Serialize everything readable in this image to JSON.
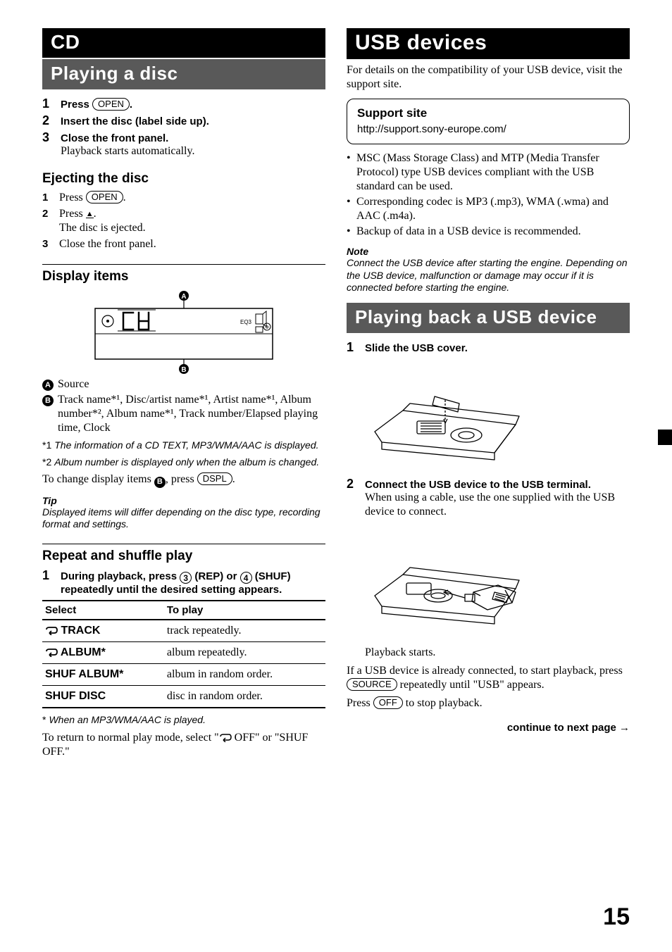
{
  "left": {
    "hdr_cd": "CD",
    "hdr_playing": "Playing a disc",
    "steps_main": [
      {
        "num": "1",
        "bold_pre": "Press ",
        "button": "OPEN",
        "bold_post": "."
      },
      {
        "num": "2",
        "bold": "Insert the disc (label side up)."
      },
      {
        "num": "3",
        "bold": "Close the front panel.",
        "plain": "Playback starts automatically."
      }
    ],
    "eject_title": "Ejecting the disc",
    "eject_steps": [
      {
        "num": "1",
        "pre": "Press ",
        "button": "OPEN",
        "post": "."
      },
      {
        "num": "2",
        "pre": "Press ",
        "eject": true,
        "post": ".",
        "sub": "The disc is ejected."
      },
      {
        "num": "3",
        "text": "Close the front panel."
      }
    ],
    "display_title": "Display items",
    "display_labels": {
      "A": "A",
      "B": "B"
    },
    "defs": [
      {
        "key": "A",
        "text": "Source"
      },
      {
        "key": "B",
        "text": "Track name*¹, Disc/artist name*¹, Artist name*¹, Album number*², Album name*¹, Track number/Elapsed playing time, Clock"
      }
    ],
    "footnotes": [
      {
        "num": "*1",
        "text": "The information of a CD TEXT, MP3/WMA/AAC is displayed."
      },
      {
        "num": "*2",
        "text": "Album number is displayed only when the album is changed."
      }
    ],
    "change_text_pre": "To change display items ",
    "change_text_mid": ", press ",
    "change_button": "DSPL",
    "change_text_post": ".",
    "tip_hdr": "Tip",
    "tip_body": "Displayed items will differ depending on the disc type, recording format and settings.",
    "repeat_title": "Repeat and shuffle play",
    "repeat_step_num": "1",
    "repeat_step_pre": "During playback, press ",
    "repeat_step_btn3": "3",
    "repeat_step_mid1": " (REP) or ",
    "repeat_step_btn4": "4",
    "repeat_step_mid2": " (SHUF) repeatedly until the desired setting appears.",
    "table": {
      "col1": "Select",
      "col2": "To play",
      "rows": [
        {
          "icon": "repeat",
          "label": "TRACK",
          "desc": "track repeatedly."
        },
        {
          "icon": "repeat",
          "label": "ALBUM*",
          "desc": "album repeatedly."
        },
        {
          "icon": "",
          "label": "SHUF ALBUM*",
          "desc": "album in random order."
        },
        {
          "icon": "",
          "label": "SHUF DISC",
          "desc": "disc in random order."
        }
      ]
    },
    "table_footnote_mark": "*",
    "table_footnote": "When an MP3/WMA/AAC is played.",
    "return_text_pre": "To return to normal play mode, select \"",
    "return_text_mid": " OFF\" or \"SHUF OFF.\""
  },
  "right": {
    "hdr_usb": "USB devices",
    "intro": "For details on the compatibility of your USB device, visit the support site.",
    "support_title": "Support site",
    "support_url": "http://support.sony-europe.com/",
    "bullets": [
      "MSC (Mass Storage Class) and MTP (Media Transfer Protocol) type USB devices compliant with the USB standard can be used.",
      "Corresponding codec is MP3 (.mp3), WMA (.wma) and AAC (.m4a).",
      "Backup of data in a USB device is recommended."
    ],
    "note_hdr": "Note",
    "note_body": "Connect the USB device after starting the engine. Depending on the USB device, malfunction or damage may occur if it is connected before starting the engine.",
    "hdr_playback": "Playing back a USB device",
    "usb_steps": [
      {
        "num": "1",
        "bold": "Slide the USB cover."
      },
      {
        "num": "2",
        "bold": "Connect the USB device to the USB terminal.",
        "plain": "When using a cable, use the one supplied with the USB device to connect."
      }
    ],
    "playback_starts": "Playback starts.",
    "already_pre": "If a USB device is already connected, to start playback, press ",
    "already_btn": "SOURCE",
    "already_post": " repeatedly until \"USB\" appears.",
    "stop_pre": "Press ",
    "stop_btn": "OFF",
    "stop_post": " to stop playback.",
    "continue": "continue to next page →"
  },
  "page_num": "15"
}
